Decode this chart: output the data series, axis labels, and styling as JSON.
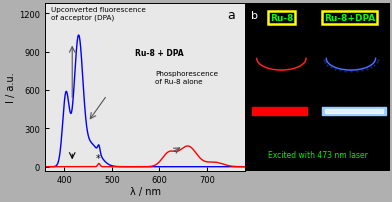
{
  "title_a": "a",
  "title_b": "b",
  "xlabel": "λ / nm",
  "ylabel": "I / a.u.",
  "xlim": [
    360,
    780
  ],
  "ylim": [
    -30,
    1280
  ],
  "yticks": [
    0,
    300,
    600,
    900,
    1200
  ],
  "xticks": [
    400,
    500,
    600,
    700
  ],
  "annotation_upconv": "Upconverted fluorescence\nof acceptor (DPA)",
  "annotation_phosph": "Phosphorescence\nof Ru-8 alone",
  "annotation_rudpa": "Ru-8 + DPA",
  "photo_label1": "Ru-8",
  "photo_label2": "Ru-8+DPA",
  "excited_text": "Excited with 473 nm laser",
  "blue_color": "#0000ff",
  "red_color": "#ff0000",
  "green_text": "#00ff00",
  "yellow_box": "#ffff00",
  "fig_bg": "#b0b0b0",
  "plot_bg": "#e8e8e8"
}
